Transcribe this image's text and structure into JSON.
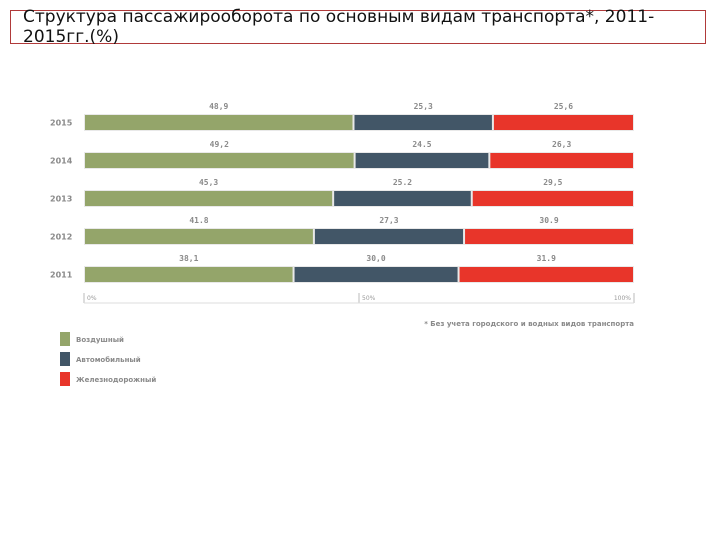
{
  "title": "Структура пассажирооборота по основным видам транспорта*, 2011-2015гг.(%)",
  "chart_data": {
    "type": "bar",
    "stacked": true,
    "orientation": "horizontal",
    "categories": [
      "2015",
      "2014",
      "2013",
      "2012",
      "2011"
    ],
    "series": [
      {
        "name": "Воздушный",
        "color": "#94a56a",
        "values": [
          48.9,
          49.2,
          45.3,
          41.8,
          38.1
        ],
        "labels": [
          "48,9",
          "49,2",
          "45,3",
          "41.8",
          "38,1"
        ]
      },
      {
        "name": "Автомобильный",
        "color": "#425667",
        "values": [
          25.3,
          24.5,
          25.2,
          27.3,
          30.0
        ],
        "labels": [
          "25,3",
          "24.5",
          "25.2",
          "27,3",
          "30,0"
        ]
      },
      {
        "name": "Железнодорожный",
        "color": "#e8352a",
        "values": [
          25.6,
          26.3,
          29.5,
          30.9,
          31.9
        ],
        "labels": [
          "25,6",
          "26,3",
          "29,5",
          "30.9",
          "31.9"
        ]
      }
    ],
    "xlim": [
      0,
      100
    ],
    "axis_ticks": [
      "0%",
      "50%",
      "100%"
    ],
    "note": "* Без учета городского и водных видов транспорта"
  }
}
